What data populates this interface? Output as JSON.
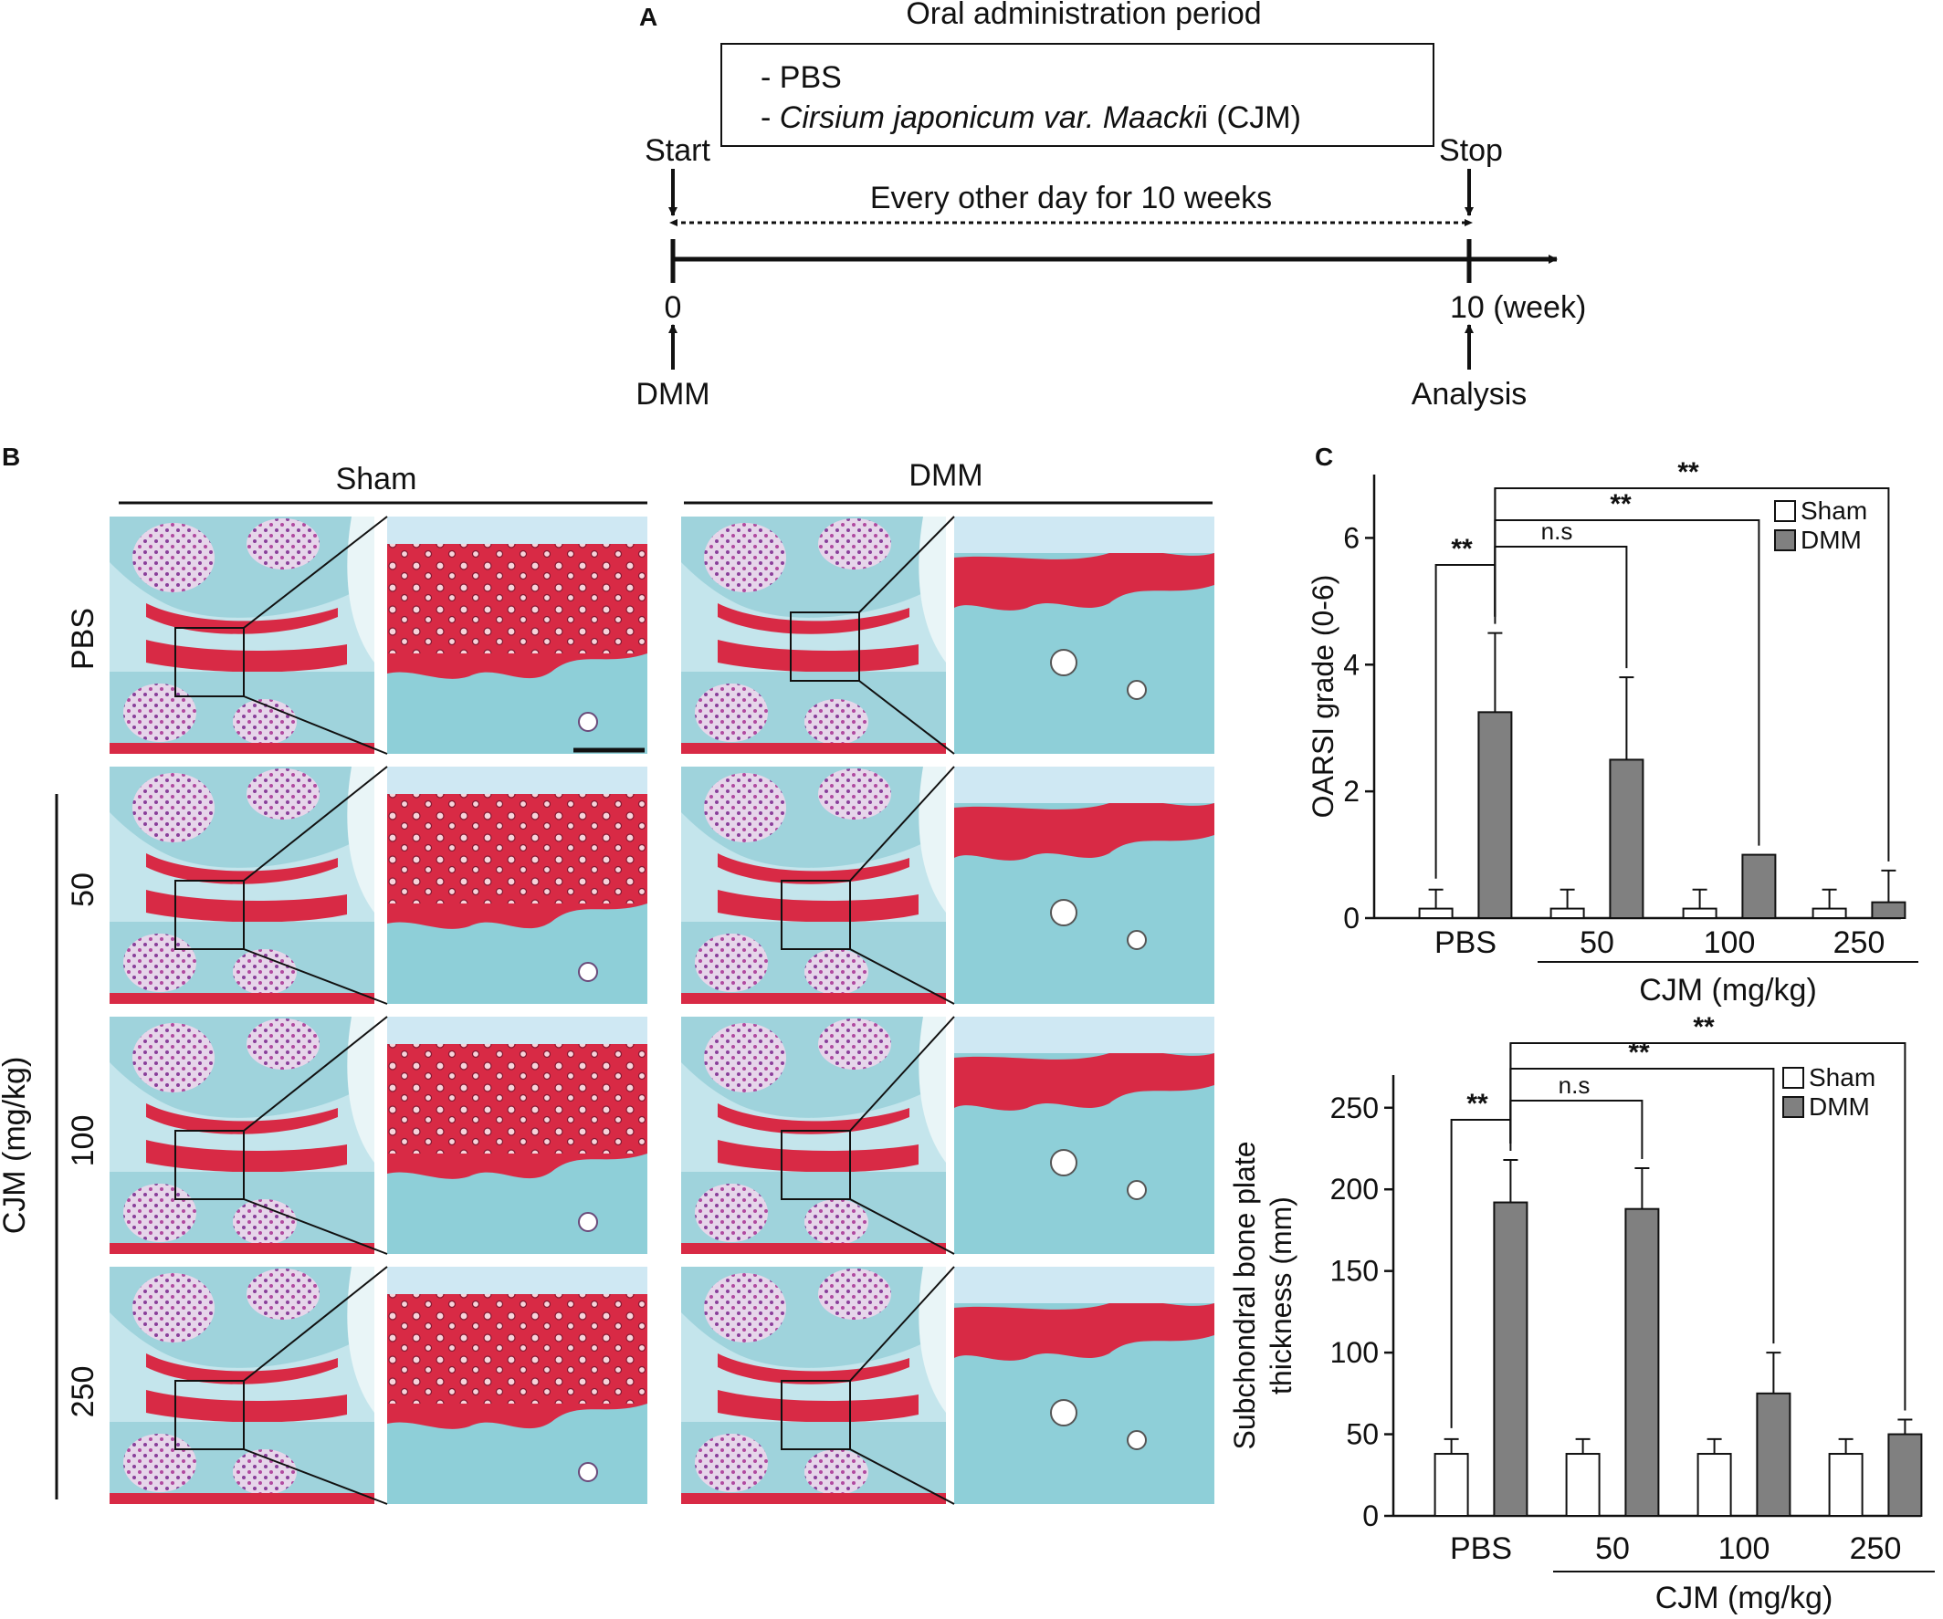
{
  "panel_a": {
    "letter": "A",
    "period_title": "Oral administration period",
    "treatments": [
      "- PBS",
      "- "
    ],
    "cjm_italic": "Cirsium japonicum var.  Maacki",
    "cjm_tail": "i (CJM)",
    "start": "Start",
    "stop": "Stop",
    "interval": "Every other day for 10 weeks",
    "tick_start": "0",
    "tick_end": "10 (week)",
    "event_start": "DMM",
    "event_end": "Analysis"
  },
  "panel_b": {
    "letter": "B",
    "col_left": "Sham",
    "col_right": "DMM",
    "rows": [
      "PBS",
      "50",
      "100",
      "250"
    ],
    "group_label": "CJM  (mg/kg)"
  },
  "panel_c": {
    "letter": "C",
    "legend": [
      "Sham",
      "DMM"
    ],
    "cjm_axis_label": "CJM (mg/kg)",
    "sig_star": "**",
    "sig_ns": "n.s"
  },
  "colors": {
    "sham": "#ffffff",
    "dmm": "#808080",
    "safranin_red": "#d82a45",
    "fast_green": "#8ecfd8"
  },
  "chart_data": [
    {
      "type": "bar",
      "ylabel": "OARSI grade (0-6)",
      "ylim": [
        0,
        7
      ],
      "yticks": [
        0,
        2,
        4,
        6
      ],
      "categories": [
        "PBS",
        "50",
        "100",
        "250"
      ],
      "series": [
        {
          "name": "Sham",
          "values": [
            0.15,
            0.15,
            0.15,
            0.15
          ],
          "errors": [
            0.3,
            0.3,
            0.3,
            0.3
          ]
        },
        {
          "name": "DMM",
          "values": [
            3.25,
            2.5,
            1.0,
            0.25
          ],
          "errors": [
            1.25,
            1.3,
            0,
            0.5
          ]
        }
      ],
      "legend": "top-right"
    },
    {
      "type": "bar",
      "ylabel": "Subchondral bone plate thickness (mm)",
      "ylim": [
        0,
        270
      ],
      "yticks": [
        0,
        50,
        100,
        150,
        200,
        250
      ],
      "categories": [
        "PBS",
        "50",
        "100",
        "250"
      ],
      "series": [
        {
          "name": "Sham",
          "values": [
            38,
            38,
            38,
            38
          ],
          "errors": [
            9,
            9,
            9,
            9
          ]
        },
        {
          "name": "DMM",
          "values": [
            192,
            188,
            75,
            50
          ],
          "errors": [
            26,
            25,
            25,
            9
          ]
        }
      ],
      "legend": "top-right"
    }
  ]
}
